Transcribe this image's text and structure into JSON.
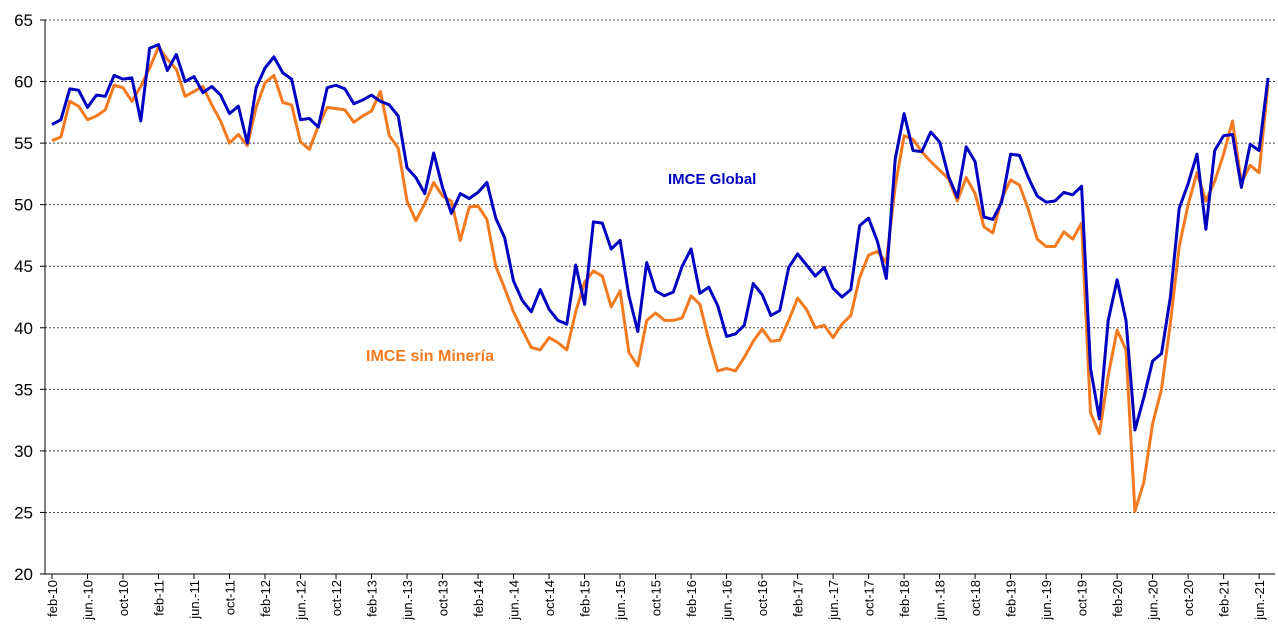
{
  "chart_data": {
    "type": "line",
    "categories": [
      "feb-10",
      null,
      null,
      null,
      "jun.-10",
      null,
      null,
      null,
      "oct-10",
      null,
      null,
      null,
      "feb-11",
      null,
      null,
      null,
      "jun.-11",
      null,
      null,
      null,
      "oct-11",
      null,
      null,
      null,
      "feb-12",
      null,
      null,
      null,
      "jun.-12",
      null,
      null,
      null,
      "oct-12",
      null,
      null,
      null,
      "feb-13",
      null,
      null,
      null,
      "jun.-13",
      null,
      null,
      null,
      "oct-13",
      null,
      null,
      null,
      "feb-14",
      null,
      null,
      null,
      "jun.-14",
      null,
      null,
      null,
      "oct-14",
      null,
      null,
      null,
      "feb-15",
      null,
      null,
      null,
      "jun.-15",
      null,
      null,
      null,
      "oct-15",
      null,
      null,
      null,
      "feb-16",
      null,
      null,
      null,
      "jun.-16",
      null,
      null,
      null,
      "oct-16",
      null,
      null,
      null,
      "feb-17",
      null,
      null,
      null,
      "jun.-17",
      null,
      null,
      null,
      "oct-17",
      null,
      null,
      null,
      "feb-18",
      null,
      null,
      null,
      "jun.-18",
      null,
      null,
      null,
      "oct-18",
      null,
      null,
      null,
      "feb-19",
      null,
      null,
      null,
      "jun.-19",
      null,
      null,
      null,
      "oct-19",
      null,
      null,
      null,
      "feb-20",
      null,
      null,
      null,
      "jun.-20",
      null,
      null,
      null,
      "oct-20",
      null,
      null,
      null,
      "feb-21",
      null,
      null,
      null,
      "jun.-21",
      null
    ],
    "series": [
      {
        "name": "IMCE Global",
        "color": "#0000c0",
        "values": [
          56.5,
          56.9,
          59.4,
          59.3,
          57.9,
          58.9,
          58.8,
          60.5,
          60.2,
          60.3,
          56.8,
          62.7,
          63.0,
          60.9,
          62.2,
          60.0,
          60.4,
          59.1,
          59.6,
          58.9,
          57.4,
          58.0,
          55.0,
          59.5,
          61.1,
          62.0,
          60.7,
          60.2,
          56.9,
          57.0,
          56.3,
          59.5,
          59.7,
          59.4,
          58.2,
          58.5,
          58.9,
          58.4,
          58.1,
          57.2,
          53.0,
          52.2,
          50.9,
          54.2,
          51.4,
          49.3,
          50.9,
          50.5,
          51.0,
          51.8,
          48.9,
          47.3,
          43.8,
          42.2,
          41.3,
          43.1,
          41.5,
          40.6,
          40.3,
          45.1,
          41.9,
          48.6,
          48.5,
          46.4,
          47.1,
          42.6,
          39.7,
          45.3,
          43.0,
          42.6,
          42.9,
          45.0,
          46.4,
          42.8,
          43.3,
          41.8,
          39.3,
          39.5,
          40.2,
          43.6,
          42.7,
          41.0,
          41.4,
          44.9,
          46.0,
          45.1,
          44.2,
          44.9,
          43.2,
          42.5,
          43.1,
          48.3,
          48.9,
          47.0,
          44.0,
          53.7,
          57.4,
          54.4,
          54.3,
          55.9,
          55.1,
          52.3,
          50.6,
          54.7,
          53.5,
          49.0,
          48.8,
          50.2,
          54.1,
          54.0,
          52.2,
          50.7,
          50.2,
          50.3,
          51.0,
          50.8,
          51.5,
          36.7,
          32.6,
          40.6,
          43.9,
          40.6,
          31.7,
          34.3,
          37.3,
          37.9,
          42.5,
          49.7,
          51.7,
          54.1,
          48.0,
          54.4,
          55.6,
          55.7,
          51.4,
          54.9,
          54.4,
          60.3
        ]
      },
      {
        "name": "IMCE sin Minería",
        "color": "#f47a1f",
        "values": [
          55.2,
          55.5,
          58.4,
          58.0,
          56.9,
          57.2,
          57.7,
          59.7,
          59.5,
          58.4,
          59.6,
          61.1,
          62.8,
          61.8,
          61.0,
          58.8,
          59.2,
          59.6,
          58.1,
          56.8,
          55.0,
          55.7,
          54.8,
          57.9,
          59.9,
          60.5,
          58.3,
          58.1,
          55.1,
          54.5,
          56.4,
          57.9,
          57.8,
          57.7,
          56.7,
          57.2,
          57.6,
          59.2,
          55.6,
          54.6,
          50.3,
          48.7,
          50.1,
          51.8,
          50.7,
          50.3,
          47.1,
          49.8,
          49.9,
          48.8,
          45.0,
          43.2,
          41.3,
          39.8,
          38.4,
          38.2,
          39.2,
          38.8,
          38.2,
          41.3,
          43.7,
          44.6,
          44.2,
          41.7,
          43.0,
          38.0,
          36.9,
          40.6,
          41.2,
          40.6,
          40.6,
          40.8,
          42.6,
          41.9,
          39.0,
          36.5,
          36.7,
          36.5,
          37.6,
          38.9,
          39.9,
          38.9,
          39.0,
          40.6,
          42.4,
          41.5,
          40.0,
          40.2,
          39.2,
          40.3,
          41.0,
          44.1,
          45.9,
          46.2,
          45.3,
          51.5,
          55.6,
          55.3,
          54.3,
          53.5,
          52.8,
          52.1,
          50.3,
          52.2,
          50.9,
          48.2,
          47.7,
          50.5,
          52.0,
          51.6,
          49.6,
          47.2,
          46.6,
          46.6,
          47.8,
          47.2,
          48.5,
          33.1,
          31.4,
          36.1,
          39.8,
          38.2,
          25.1,
          27.4,
          32.2,
          35.0,
          40.4,
          46.6,
          50.0,
          52.6,
          50.3,
          51.9,
          54.1,
          56.8,
          51.8,
          53.2,
          52.6,
          59.8
        ]
      }
    ],
    "ylim": [
      20,
      65
    ],
    "yticks": [
      20,
      25,
      30,
      35,
      40,
      45,
      50,
      55,
      60,
      65
    ],
    "grid": true
  }
}
